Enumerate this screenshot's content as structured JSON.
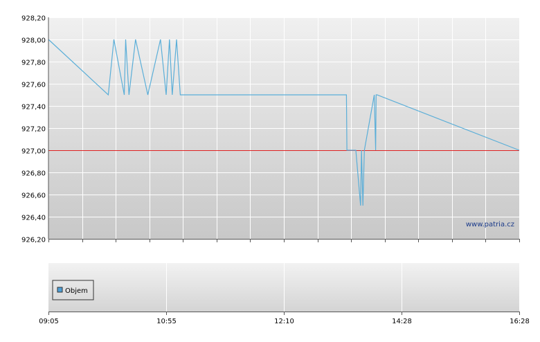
{
  "watermark": "www.patria.cz",
  "legend": {
    "label": "Objem",
    "color": "#4d9fd6"
  },
  "colors": {
    "price_line": "#5aaed8",
    "reference_line": "#e02020",
    "grid": "#ffffff",
    "axis": "#555555",
    "bg_top": "#f0f0f0",
    "bg_bottom": "#c8c8c8"
  },
  "chart_data": [
    {
      "type": "line",
      "name": "price",
      "ylim": [
        926.2,
        928.2
      ],
      "y_ticks": [
        "928,20",
        "928,00",
        "927,80",
        "927,60",
        "927,40",
        "927,20",
        "927,00",
        "926,80",
        "926,60",
        "926,40",
        "926,20"
      ],
      "y_tick_values": [
        928.2,
        928.0,
        927.8,
        927.6,
        927.4,
        927.2,
        927.0,
        926.8,
        926.6,
        926.4,
        926.2
      ],
      "reference_value": 927.0,
      "x_tick_count": 14,
      "grid": true,
      "series": [
        {
          "x_frac": [
            0.0,
            0.127,
            0.139,
            0.161,
            0.164,
            0.171,
            0.185,
            0.211,
            0.238,
            0.25,
            0.257,
            0.263,
            0.272,
            0.28,
            0.419,
            0.633,
            0.634,
            0.636,
            0.653,
            0.663,
            0.665,
            0.668,
            0.671,
            0.692,
            0.695,
            0.696,
            0.698,
            1.0
          ],
          "y": [
            928.0,
            927.5,
            928.0,
            927.5,
            928.0,
            927.5,
            928.0,
            927.5,
            928.0,
            927.5,
            928.0,
            927.5,
            928.0,
            927.5,
            927.5,
            927.5,
            927.0,
            927.0,
            927.0,
            926.5,
            927.0,
            926.5,
            927.0,
            927.5,
            927.0,
            927.5,
            927.5,
            927.0
          ]
        }
      ]
    },
    {
      "type": "bar",
      "name": "volume",
      "x_labels": [
        "09:05",
        "10:55",
        "12:10",
        "14:28",
        "16:28"
      ],
      "x_label_frac": [
        0.0,
        0.25,
        0.5,
        0.75,
        1.0
      ],
      "legend": "Objem",
      "values": []
    }
  ]
}
